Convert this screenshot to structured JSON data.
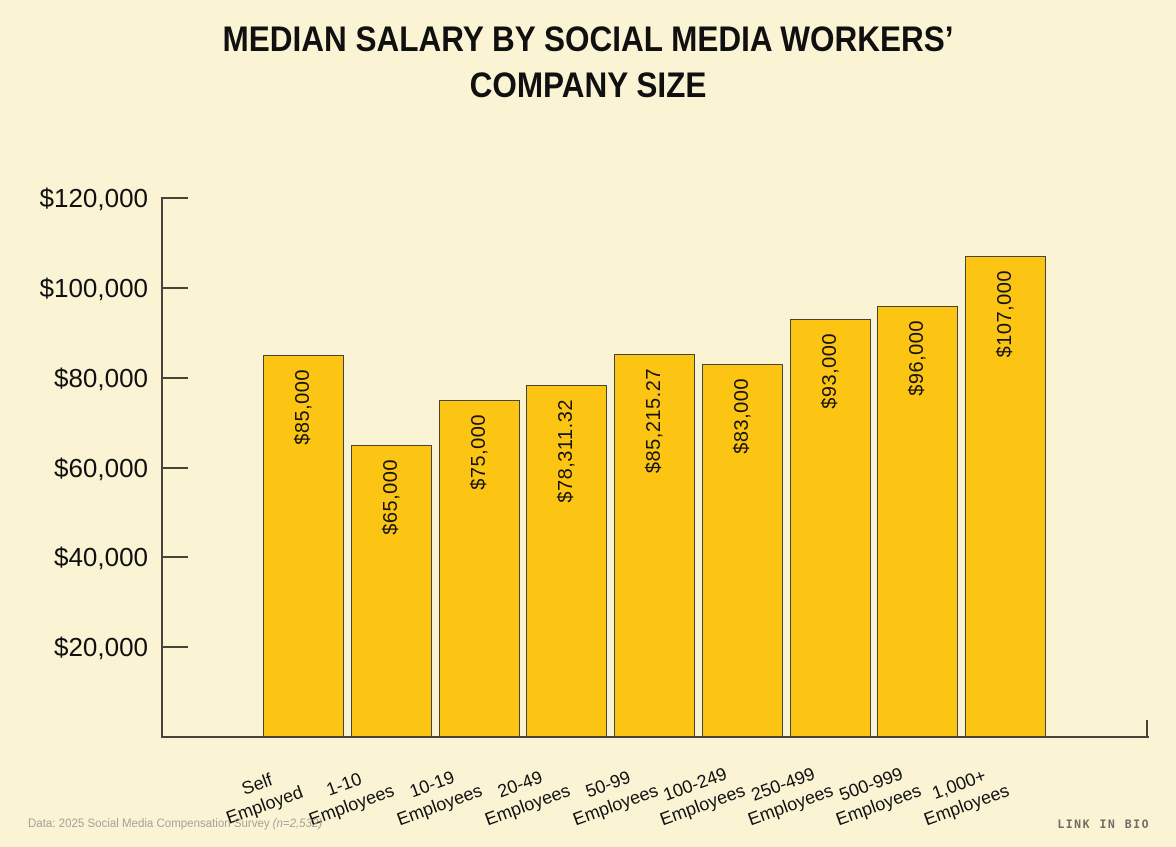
{
  "title": {
    "line1": "MEDIAN SALARY BY SOCIAL MEDIA WORKERS’",
    "line2": "COMPANY SIZE"
  },
  "footer": {
    "source_text": "Data: 2025 Social Media Compensation Survey",
    "sample_note": "(n=2,532)",
    "brand": "LINK IN BIO"
  },
  "chart_data": {
    "type": "bar",
    "title": "MEDIAN SALARY BY SOCIAL MEDIA WORKERS’ COMPANY SIZE",
    "categories": [
      "Self\nEmployed",
      "1-10\nEmployees",
      "10-19\nEmployees",
      "20-49\nEmployees",
      "50-99\nEmployees",
      "100-249\nEmployees",
      "250-499\nEmployees",
      "500-999\nEmployees",
      "1,000+\nEmployees"
    ],
    "values": [
      85000,
      65000,
      75000,
      78311.32,
      85215.27,
      83000,
      93000,
      96000,
      107000
    ],
    "bar_labels": [
      "$85,000",
      "$65,000",
      "$75,000",
      "$78,311.32",
      "$85,215.27",
      "$83,000",
      "$93,000",
      "$96,000",
      "$107,000"
    ],
    "xlabel": "",
    "ylabel": "",
    "ylim": [
      0,
      120000
    ],
    "y_ticks": [
      20000,
      40000,
      60000,
      80000,
      100000,
      120000
    ],
    "y_tick_labels": [
      "$20,000",
      "$40,000",
      "$60,000",
      "$80,000",
      "$100,000",
      "$120,000"
    ],
    "grid": false,
    "legend": null,
    "bar_value_label_rotation": 90,
    "x_tick_label_rotation": 20,
    "colors": {
      "background": "#FAF3D4",
      "bar": "#FDC513",
      "bar_border": "#46433A",
      "axis": "#46433A",
      "text": "#101010",
      "footer_text": "#A5A295",
      "brand": "#716D60"
    }
  }
}
